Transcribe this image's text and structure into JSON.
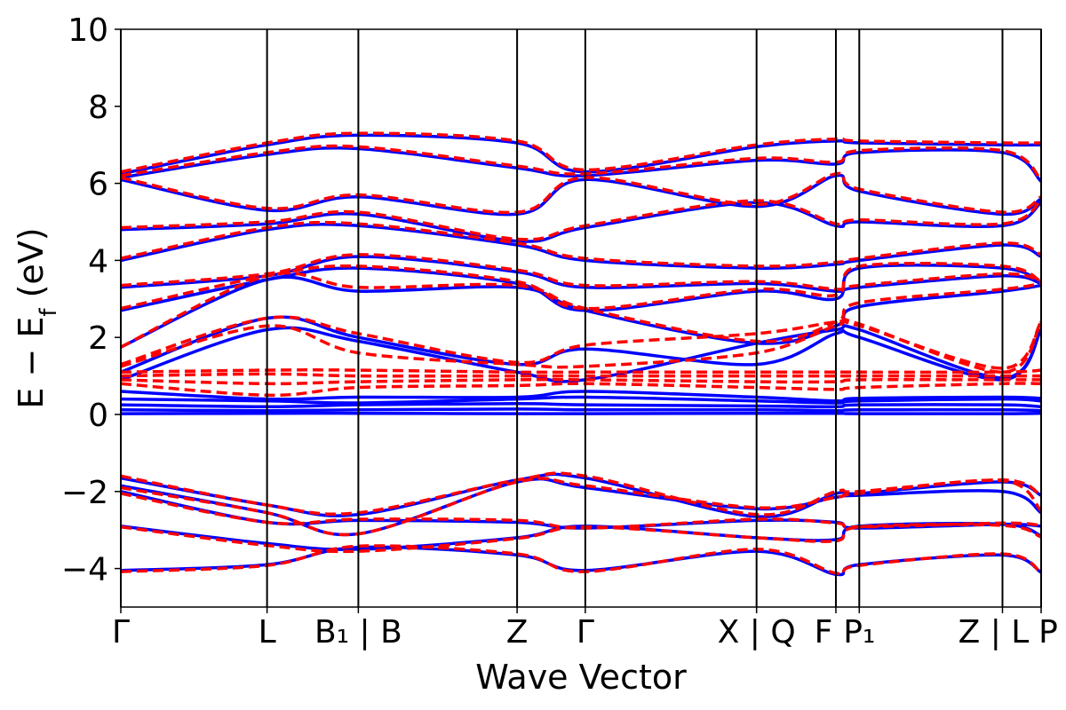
{
  "chart_data": {
    "type": "line",
    "xlabel": "Wave Vector",
    "ylabel": "E − E",
    "ylabel_sub": "f",
    "ylabel_unit": " (eV)",
    "ylim": [
      -5,
      10
    ],
    "yticks": [
      -4,
      -2,
      0,
      2,
      4,
      6,
      8,
      10
    ],
    "ytick_labels": [
      "−4",
      "−2",
      "0",
      "2",
      "4",
      "6",
      "8",
      "10"
    ],
    "xlim": [
      0,
      10
    ],
    "high_symmetry_points": [
      {
        "x": 0.0,
        "label": "Γ"
      },
      {
        "x": 1.589,
        "label": "L"
      },
      {
        "x": 2.581,
        "label": "B₁ | B"
      },
      {
        "x": 4.306,
        "label": "Z"
      },
      {
        "x": 5.047,
        "label": "Γ"
      },
      {
        "x": 6.908,
        "label": "X | Q"
      },
      {
        "x": 7.77,
        "label": "F"
      },
      {
        "x": 8.024,
        "label": "P₁"
      },
      {
        "x": 9.58,
        "label": "Z | L"
      },
      {
        "x": 10.0,
        "label": "P"
      }
    ],
    "colors": {
      "series_a": "#0000ff",
      "series_b": "#ff0000"
    },
    "series": [
      {
        "style": "solid",
        "color": "#0000ff",
        "bands": [
          [
            -4.05,
            -3.9,
            -3.45,
            -3.65,
            -4.05,
            -3.55,
            -4.15,
            -3.9,
            -3.65,
            -4.1
          ],
          [
            -2.9,
            -3.35,
            -3.5,
            -3.2,
            -2.9,
            -3.2,
            -3.25,
            -2.9,
            -2.85,
            -3.15
          ],
          [
            -2.0,
            -2.8,
            -2.75,
            -2.8,
            -2.95,
            -2.75,
            -2.8,
            -2.95,
            -2.85,
            -2.9
          ],
          [
            -1.85,
            -2.55,
            -3.1,
            -1.75,
            -1.9,
            -2.45,
            -2.15,
            -2.1,
            -2.0,
            -2.55
          ],
          [
            -1.65,
            -2.35,
            -2.6,
            -1.7,
            -1.65,
            -2.65,
            -2.05,
            -2.05,
            -1.75,
            -2.1
          ],
          [
            0.02,
            0.03,
            0.03,
            0.02,
            0.02,
            0.03,
            0.03,
            0.02,
            0.02,
            0.03
          ],
          [
            0.12,
            0.1,
            0.12,
            0.14,
            0.12,
            0.12,
            0.1,
            0.12,
            0.12,
            0.1
          ],
          [
            0.25,
            0.2,
            0.25,
            0.28,
            0.25,
            0.22,
            0.2,
            0.25,
            0.25,
            0.2
          ],
          [
            0.4,
            0.35,
            0.3,
            0.4,
            0.45,
            0.35,
            0.3,
            0.35,
            0.4,
            0.35
          ],
          [
            0.6,
            0.4,
            0.45,
            0.45,
            0.6,
            0.45,
            0.35,
            0.42,
            0.45,
            0.42
          ],
          [
            0.9,
            2.2,
            1.9,
            1.1,
            0.9,
            1.85,
            2.2,
            2.2,
            0.95,
            2.2
          ],
          [
            1.1,
            2.5,
            2.0,
            1.3,
            1.7,
            1.3,
            2.1,
            2.0,
            0.9,
            2.2
          ],
          [
            1.75,
            3.5,
            3.2,
            3.3,
            2.7,
            1.85,
            2.3,
            2.8,
            3.2,
            3.35
          ],
          [
            2.7,
            3.5,
            3.8,
            3.4,
            2.7,
            3.2,
            3.0,
            3.8,
            3.8,
            3.4
          ],
          [
            3.3,
            3.6,
            4.1,
            3.7,
            3.3,
            3.4,
            3.2,
            3.3,
            3.6,
            3.4
          ],
          [
            4.0,
            4.8,
            4.9,
            4.4,
            4.0,
            3.8,
            3.9,
            4.0,
            4.4,
            4.1
          ],
          [
            4.8,
            4.95,
            5.2,
            4.5,
            4.85,
            5.5,
            4.9,
            5.0,
            4.9,
            5.5
          ],
          [
            6.1,
            5.3,
            5.65,
            5.2,
            6.1,
            5.4,
            6.2,
            5.8,
            5.2,
            5.6
          ],
          [
            6.15,
            6.75,
            6.9,
            6.4,
            6.2,
            6.6,
            6.5,
            6.8,
            6.8,
            6.05
          ],
          [
            6.25,
            7.0,
            7.25,
            7.05,
            6.3,
            6.95,
            7.1,
            7.05,
            7.0,
            7.0
          ]
        ]
      },
      {
        "style": "dashed",
        "color": "#ff0000",
        "bands": [
          [
            -4.08,
            -3.92,
            -3.42,
            -3.62,
            -4.08,
            -3.5,
            -4.12,
            -3.92,
            -3.62,
            -4.1
          ],
          [
            -2.92,
            -3.4,
            -3.55,
            -3.22,
            -2.92,
            -3.2,
            -3.28,
            -2.92,
            -2.88,
            -3.18
          ],
          [
            -2.05,
            -2.8,
            -2.72,
            -2.75,
            -2.95,
            -2.72,
            -2.82,
            -2.92,
            -2.82,
            -2.88
          ],
          [
            -1.9,
            -2.55,
            -3.1,
            -1.75,
            -1.85,
            -2.42,
            -2.15,
            -2.05,
            -1.72,
            -2.5
          ],
          [
            -1.6,
            -2.35,
            -2.55,
            -1.7,
            -1.6,
            -2.6,
            -2.0,
            -2.0,
            -1.7,
            -2.1
          ],
          [
            0.8,
            0.5,
            0.7,
            0.75,
            0.8,
            0.7,
            0.65,
            0.7,
            0.8,
            0.8
          ],
          [
            0.9,
            0.8,
            0.85,
            0.9,
            0.9,
            0.85,
            0.85,
            0.9,
            0.9,
            0.9
          ],
          [
            1.0,
            1.05,
            1.0,
            1.0,
            1.0,
            1.0,
            1.0,
            1.0,
            1.0,
            1.0
          ],
          [
            1.1,
            1.15,
            1.15,
            1.1,
            1.1,
            1.1,
            1.1,
            1.1,
            1.1,
            1.15
          ],
          [
            1.25,
            2.3,
            1.6,
            1.3,
            1.25,
            1.6,
            2.3,
            2.3,
            1.2,
            2.4
          ],
          [
            1.3,
            2.5,
            2.1,
            1.35,
            1.8,
            2.1,
            2.4,
            2.35,
            1.1,
            2.4
          ],
          [
            1.75,
            3.6,
            3.3,
            3.35,
            2.75,
            1.9,
            2.4,
            2.9,
            3.25,
            3.4
          ],
          [
            2.75,
            3.6,
            3.85,
            3.45,
            2.75,
            3.25,
            3.1,
            3.85,
            3.85,
            3.45
          ],
          [
            3.35,
            3.65,
            4.15,
            3.75,
            3.35,
            3.45,
            3.25,
            3.35,
            3.65,
            3.45
          ],
          [
            4.05,
            4.85,
            4.95,
            4.45,
            4.05,
            3.85,
            3.95,
            4.05,
            4.45,
            4.15
          ],
          [
            4.85,
            5.0,
            5.25,
            4.55,
            4.9,
            5.55,
            4.95,
            5.05,
            4.95,
            5.55
          ],
          [
            6.15,
            5.35,
            5.7,
            5.25,
            6.15,
            5.45,
            6.25,
            5.85,
            5.25,
            5.65
          ],
          [
            6.2,
            6.8,
            6.95,
            6.45,
            6.25,
            6.65,
            6.55,
            6.85,
            6.85,
            6.1
          ],
          [
            6.3,
            7.05,
            7.3,
            7.1,
            6.35,
            7.0,
            7.15,
            7.1,
            7.05,
            7.05
          ]
        ]
      }
    ]
  }
}
